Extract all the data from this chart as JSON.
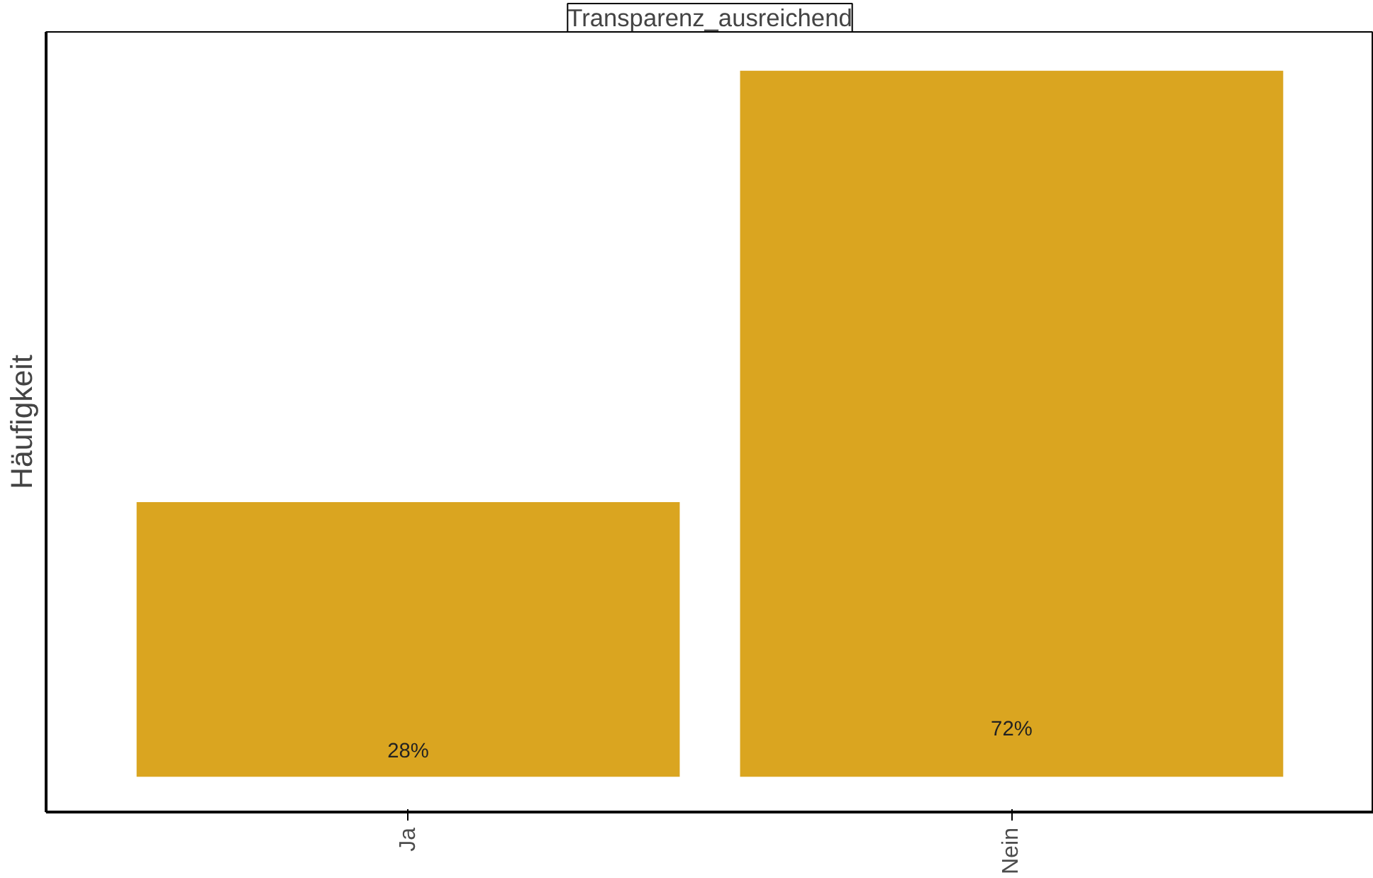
{
  "chart_data": {
    "type": "bar",
    "title": "Transparenz_ausreichend",
    "ylabel": "Häufigkeit",
    "categories": [
      "Ja",
      "Nein"
    ],
    "values": [
      28,
      72
    ],
    "color": "#daa520",
    "data_labels": true,
    "value_labels": [
      "28%",
      "72%"
    ],
    "grid": false
  }
}
